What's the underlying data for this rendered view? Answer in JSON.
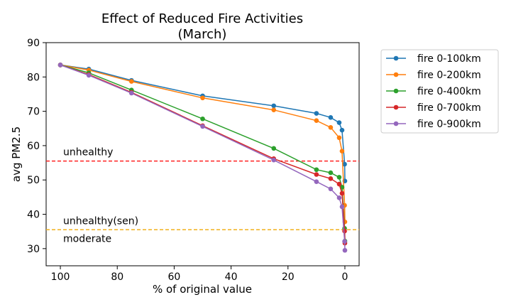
{
  "chart_data": {
    "type": "line",
    "title_line1": "Effect of Reduced Fire Activities",
    "title_line2": "(March)",
    "xlabel": "% of original value",
    "ylabel": "avg PM2.5",
    "xlim": [
      105,
      -5
    ],
    "ylim": [
      25,
      90
    ],
    "x_ticks": [
      100,
      80,
      60,
      40,
      20,
      0
    ],
    "y_ticks": [
      30,
      40,
      50,
      60,
      70,
      80,
      90
    ],
    "legend_position": "upper right, outside plot",
    "thresholds": [
      {
        "label": "unhealthy",
        "value": 55.5,
        "color": "#ff2222"
      },
      {
        "label": "unhealthy(sen)",
        "value": 35.5,
        "color": "#f0b21e"
      }
    ],
    "extra_labels": [
      "moderate"
    ],
    "series": [
      {
        "name": "fire 0-100km",
        "color": "#1f77b4",
        "x": [
          100,
          90,
          75,
          50,
          25,
          10,
          5,
          2,
          1,
          0.1,
          0
        ],
        "y": [
          83.5,
          82.3,
          79.0,
          74.5,
          71.6,
          69.4,
          68.2,
          66.7,
          64.5,
          54.6,
          49.7
        ]
      },
      {
        "name": "fire 0-200km",
        "color": "#ff7f0e",
        "x": [
          100,
          90,
          75,
          50,
          25,
          10,
          5,
          2,
          1,
          0.1,
          0
        ],
        "y": [
          83.5,
          82.0,
          78.7,
          73.9,
          70.4,
          67.3,
          65.3,
          62.3,
          58.4,
          42.6,
          37.8
        ]
      },
      {
        "name": "fire 0-400km",
        "color": "#2ca02c",
        "x": [
          100,
          90,
          75,
          50,
          25,
          10,
          5,
          2,
          1,
          0.1,
          0
        ],
        "y": [
          83.5,
          81.2,
          76.2,
          67.8,
          59.2,
          53.0,
          52.1,
          50.8,
          47.9,
          35.9,
          32.2
        ]
      },
      {
        "name": "fire 0-700km",
        "color": "#d62728",
        "x": [
          100,
          90,
          75,
          50,
          25,
          10,
          5,
          2,
          1,
          0.1,
          0
        ],
        "y": [
          83.5,
          80.7,
          75.5,
          65.8,
          56.2,
          51.6,
          50.4,
          48.8,
          46.1,
          35.1,
          31.6
        ]
      },
      {
        "name": "fire 0-900km",
        "color": "#9467bd",
        "x": [
          100,
          90,
          75,
          50,
          25,
          10,
          5,
          2,
          1,
          0.1,
          0
        ],
        "y": [
          83.5,
          80.5,
          75.3,
          65.6,
          55.8,
          49.5,
          47.4,
          44.8,
          42.2,
          32.1,
          29.5
        ]
      }
    ]
  }
}
